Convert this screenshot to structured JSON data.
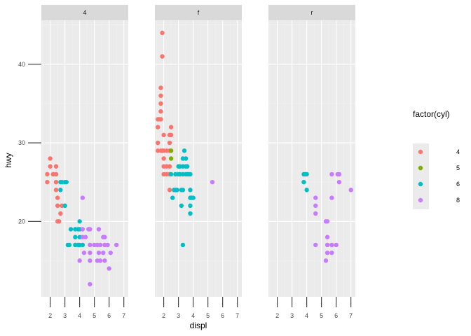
{
  "chart_data": {
    "type": "scatter",
    "facet_variable": "drv",
    "facets": [
      "4",
      "f",
      "r"
    ],
    "xlabel": "displ",
    "ylabel": "hwy",
    "xlim": [
      1.4,
      7.3
    ],
    "ylim": [
      10.4,
      45.6
    ],
    "x_ticks": [
      2,
      3,
      4,
      5,
      6,
      7
    ],
    "y_ticks": [
      20,
      30,
      40
    ],
    "grid": true,
    "legend": {
      "title": "factor(cyl)",
      "position": "right",
      "entries": [
        {
          "label": "4",
          "color": "#F8766D"
        },
        {
          "label": "5",
          "color": "#7CAE00"
        },
        {
          "label": "6",
          "color": "#00BFC4"
        },
        {
          "label": "8",
          "color": "#C77CFF"
        }
      ]
    },
    "series": [
      {
        "facet": "4",
        "points": [
          {
            "x": 1.8,
            "y": 26,
            "cyl": "4"
          },
          {
            "x": 1.8,
            "y": 25,
            "cyl": "4"
          },
          {
            "x": 2.0,
            "y": 28,
            "cyl": "4"
          },
          {
            "x": 2.0,
            "y": 27,
            "cyl": "4"
          },
          {
            "x": 2.2,
            "y": 26,
            "cyl": "4"
          },
          {
            "x": 2.4,
            "y": 27,
            "cyl": "4"
          },
          {
            "x": 2.4,
            "y": 26,
            "cyl": "4"
          },
          {
            "x": 2.4,
            "y": 25,
            "cyl": "4"
          },
          {
            "x": 2.4,
            "y": 24,
            "cyl": "4"
          },
          {
            "x": 2.5,
            "y": 23,
            "cyl": "4"
          },
          {
            "x": 2.5,
            "y": 22,
            "cyl": "4"
          },
          {
            "x": 2.5,
            "y": 20,
            "cyl": "4"
          },
          {
            "x": 2.6,
            "y": 20,
            "cyl": "4"
          },
          {
            "x": 2.7,
            "y": 21,
            "cyl": "4"
          },
          {
            "x": 2.8,
            "y": 22,
            "cyl": "4"
          },
          {
            "x": 2.7,
            "y": 25,
            "cyl": "6"
          },
          {
            "x": 2.7,
            "y": 24,
            "cyl": "6"
          },
          {
            "x": 2.8,
            "y": 25,
            "cyl": "6"
          },
          {
            "x": 3.0,
            "y": 25,
            "cyl": "6"
          },
          {
            "x": 3.0,
            "y": 22,
            "cyl": "6"
          },
          {
            "x": 3.1,
            "y": 25,
            "cyl": "6"
          },
          {
            "x": 3.4,
            "y": 19,
            "cyl": "6"
          },
          {
            "x": 3.7,
            "y": 19,
            "cyl": "6"
          },
          {
            "x": 3.7,
            "y": 18,
            "cyl": "6"
          },
          {
            "x": 3.2,
            "y": 17,
            "cyl": "6"
          },
          {
            "x": 3.3,
            "y": 17,
            "cyl": "6"
          },
          {
            "x": 3.7,
            "y": 17,
            "cyl": "6"
          },
          {
            "x": 3.9,
            "y": 17,
            "cyl": "6"
          },
          {
            "x": 3.9,
            "y": 19,
            "cyl": "6"
          },
          {
            "x": 4.0,
            "y": 20,
            "cyl": "6"
          },
          {
            "x": 4.0,
            "y": 19,
            "cyl": "6"
          },
          {
            "x": 4.0,
            "y": 18,
            "cyl": "6"
          },
          {
            "x": 4.0,
            "y": 17,
            "cyl": "6"
          },
          {
            "x": 4.2,
            "y": 17,
            "cyl": "6"
          },
          {
            "x": 4.2,
            "y": 23,
            "cyl": "8"
          },
          {
            "x": 4.2,
            "y": 19,
            "cyl": "8"
          },
          {
            "x": 4.2,
            "y": 18,
            "cyl": "8"
          },
          {
            "x": 4.0,
            "y": 15,
            "cyl": "8"
          },
          {
            "x": 4.3,
            "y": 16,
            "cyl": "8"
          },
          {
            "x": 4.6,
            "y": 19,
            "cyl": "8"
          },
          {
            "x": 4.7,
            "y": 19,
            "cyl": "8"
          },
          {
            "x": 4.7,
            "y": 17,
            "cyl": "8"
          },
          {
            "x": 4.7,
            "y": 16,
            "cyl": "8"
          },
          {
            "x": 4.7,
            "y": 15,
            "cyl": "8"
          },
          {
            "x": 4.7,
            "y": 12,
            "cyl": "8"
          },
          {
            "x": 4.4,
            "y": 18,
            "cyl": "8"
          },
          {
            "x": 5.0,
            "y": 17,
            "cyl": "8"
          },
          {
            "x": 5.2,
            "y": 17,
            "cyl": "8"
          },
          {
            "x": 5.2,
            "y": 15,
            "cyl": "8"
          },
          {
            "x": 5.3,
            "y": 19,
            "cyl": "8"
          },
          {
            "x": 5.3,
            "y": 16,
            "cyl": "8"
          },
          {
            "x": 5.4,
            "y": 17,
            "cyl": "8"
          },
          {
            "x": 5.4,
            "y": 15,
            "cyl": "8"
          },
          {
            "x": 5.7,
            "y": 18,
            "cyl": "8"
          },
          {
            "x": 5.7,
            "y": 17,
            "cyl": "8"
          },
          {
            "x": 5.7,
            "y": 15,
            "cyl": "8"
          },
          {
            "x": 5.9,
            "y": 17,
            "cyl": "8"
          },
          {
            "x": 6.0,
            "y": 14,
            "cyl": "8"
          },
          {
            "x": 6.1,
            "y": 16,
            "cyl": "8"
          },
          {
            "x": 6.5,
            "y": 17,
            "cyl": "8"
          },
          {
            "x": 5.6,
            "y": 16,
            "cyl": "8"
          },
          {
            "x": 5.6,
            "y": 18,
            "cyl": "8"
          }
        ]
      },
      {
        "facet": "f",
        "points": [
          {
            "x": 1.8,
            "y": 29,
            "cyl": "4"
          },
          {
            "x": 1.8,
            "y": 37,
            "cyl": "4"
          },
          {
            "x": 1.8,
            "y": 36,
            "cyl": "4"
          },
          {
            "x": 1.8,
            "y": 35,
            "cyl": "4"
          },
          {
            "x": 1.8,
            "y": 34,
            "cyl": "4"
          },
          {
            "x": 1.8,
            "y": 33,
            "cyl": "4"
          },
          {
            "x": 1.9,
            "y": 44,
            "cyl": "4"
          },
          {
            "x": 1.9,
            "y": 41,
            "cyl": "4"
          },
          {
            "x": 1.9,
            "y": 29,
            "cyl": "4"
          },
          {
            "x": 1.6,
            "y": 33,
            "cyl": "4"
          },
          {
            "x": 1.6,
            "y": 32,
            "cyl": "4"
          },
          {
            "x": 1.6,
            "y": 30,
            "cyl": "4"
          },
          {
            "x": 1.6,
            "y": 29,
            "cyl": "4"
          },
          {
            "x": 1.7,
            "y": 33,
            "cyl": "4"
          },
          {
            "x": 2.0,
            "y": 31,
            "cyl": "4"
          },
          {
            "x": 2.0,
            "y": 29,
            "cyl": "4"
          },
          {
            "x": 2.0,
            "y": 28,
            "cyl": "4"
          },
          {
            "x": 2.0,
            "y": 27,
            "cyl": "4"
          },
          {
            "x": 2.0,
            "y": 26,
            "cyl": "4"
          },
          {
            "x": 2.2,
            "y": 29,
            "cyl": "4"
          },
          {
            "x": 2.2,
            "y": 27,
            "cyl": "4"
          },
          {
            "x": 2.2,
            "y": 26,
            "cyl": "4"
          },
          {
            "x": 2.4,
            "y": 31,
            "cyl": "4"
          },
          {
            "x": 2.4,
            "y": 30,
            "cyl": "4"
          },
          {
            "x": 2.4,
            "y": 29,
            "cyl": "4"
          },
          {
            "x": 2.4,
            "y": 27,
            "cyl": "4"
          },
          {
            "x": 2.4,
            "y": 26,
            "cyl": "4"
          },
          {
            "x": 2.5,
            "y": 32,
            "cyl": "4"
          },
          {
            "x": 2.5,
            "y": 31,
            "cyl": "4"
          },
          {
            "x": 2.4,
            "y": 24,
            "cyl": "4"
          },
          {
            "x": 2.5,
            "y": 29,
            "cyl": "5"
          },
          {
            "x": 2.5,
            "y": 28,
            "cyl": "5"
          },
          {
            "x": 2.5,
            "y": 26,
            "cyl": "6"
          },
          {
            "x": 2.8,
            "y": 26,
            "cyl": "6"
          },
          {
            "x": 2.8,
            "y": 24,
            "cyl": "6"
          },
          {
            "x": 3.0,
            "y": 27,
            "cyl": "6"
          },
          {
            "x": 3.0,
            "y": 26,
            "cyl": "6"
          },
          {
            "x": 3.1,
            "y": 27,
            "cyl": "6"
          },
          {
            "x": 3.1,
            "y": 26,
            "cyl": "6"
          },
          {
            "x": 3.3,
            "y": 28,
            "cyl": "6"
          },
          {
            "x": 3.3,
            "y": 27,
            "cyl": "6"
          },
          {
            "x": 3.3,
            "y": 26,
            "cyl": "6"
          },
          {
            "x": 3.3,
            "y": 24,
            "cyl": "6"
          },
          {
            "x": 3.4,
            "y": 29,
            "cyl": "6"
          },
          {
            "x": 3.5,
            "y": 28,
            "cyl": "6"
          },
          {
            "x": 3.5,
            "y": 27,
            "cyl": "6"
          },
          {
            "x": 3.5,
            "y": 26,
            "cyl": "6"
          },
          {
            "x": 3.8,
            "y": 26,
            "cyl": "6"
          },
          {
            "x": 3.8,
            "y": 24,
            "cyl": "6"
          },
          {
            "x": 3.8,
            "y": 23,
            "cyl": "6"
          },
          {
            "x": 3.8,
            "y": 22,
            "cyl": "6"
          },
          {
            "x": 3.8,
            "y": 21,
            "cyl": "6"
          },
          {
            "x": 3.9,
            "y": 23,
            "cyl": "6"
          },
          {
            "x": 4.0,
            "y": 23,
            "cyl": "6"
          },
          {
            "x": 2.7,
            "y": 24,
            "cyl": "6"
          },
          {
            "x": 2.9,
            "y": 24,
            "cyl": "6"
          },
          {
            "x": 3.2,
            "y": 24,
            "cyl": "6"
          },
          {
            "x": 3.2,
            "y": 22,
            "cyl": "6"
          },
          {
            "x": 3.3,
            "y": 17,
            "cyl": "6"
          },
          {
            "x": 3.6,
            "y": 27,
            "cyl": "6"
          },
          {
            "x": 3.6,
            "y": 26,
            "cyl": "6"
          },
          {
            "x": 3.7,
            "y": 26,
            "cyl": "6"
          },
          {
            "x": 2.6,
            "y": 23,
            "cyl": "6"
          },
          {
            "x": 5.3,
            "y": 25,
            "cyl": "8"
          }
        ]
      },
      {
        "facet": "r",
        "points": [
          {
            "x": 3.8,
            "y": 26,
            "cyl": "6"
          },
          {
            "x": 3.8,
            "y": 25,
            "cyl": "6"
          },
          {
            "x": 3.9,
            "y": 26,
            "cyl": "6"
          },
          {
            "x": 4.0,
            "y": 26,
            "cyl": "6"
          },
          {
            "x": 4.0,
            "y": 24,
            "cyl": "6"
          },
          {
            "x": 4.6,
            "y": 23,
            "cyl": "8"
          },
          {
            "x": 4.6,
            "y": 22,
            "cyl": "8"
          },
          {
            "x": 4.6,
            "y": 21,
            "cyl": "8"
          },
          {
            "x": 4.6,
            "y": 17,
            "cyl": "8"
          },
          {
            "x": 5.3,
            "y": 20,
            "cyl": "8"
          },
          {
            "x": 5.4,
            "y": 20,
            "cyl": "8"
          },
          {
            "x": 5.4,
            "y": 18,
            "cyl": "8"
          },
          {
            "x": 5.4,
            "y": 17,
            "cyl": "8"
          },
          {
            "x": 5.4,
            "y": 16,
            "cyl": "8"
          },
          {
            "x": 5.3,
            "y": 15,
            "cyl": "8"
          },
          {
            "x": 5.7,
            "y": 26,
            "cyl": "8"
          },
          {
            "x": 5.7,
            "y": 23,
            "cyl": "8"
          },
          {
            "x": 5.7,
            "y": 17,
            "cyl": "8"
          },
          {
            "x": 5.7,
            "y": 16,
            "cyl": "8"
          },
          {
            "x": 6.0,
            "y": 17,
            "cyl": "8"
          },
          {
            "x": 6.1,
            "y": 26,
            "cyl": "8"
          },
          {
            "x": 6.2,
            "y": 26,
            "cyl": "8"
          },
          {
            "x": 6.2,
            "y": 25,
            "cyl": "8"
          },
          {
            "x": 7.0,
            "y": 24,
            "cyl": "8"
          }
        ]
      }
    ]
  },
  "colors": {
    "panel_background": "#EBEBEB",
    "strip_background": "#D9D9D9",
    "grid_major": "#FFFFFF",
    "grid_minor": "#F2F2F2",
    "tick_color": "#333333"
  }
}
